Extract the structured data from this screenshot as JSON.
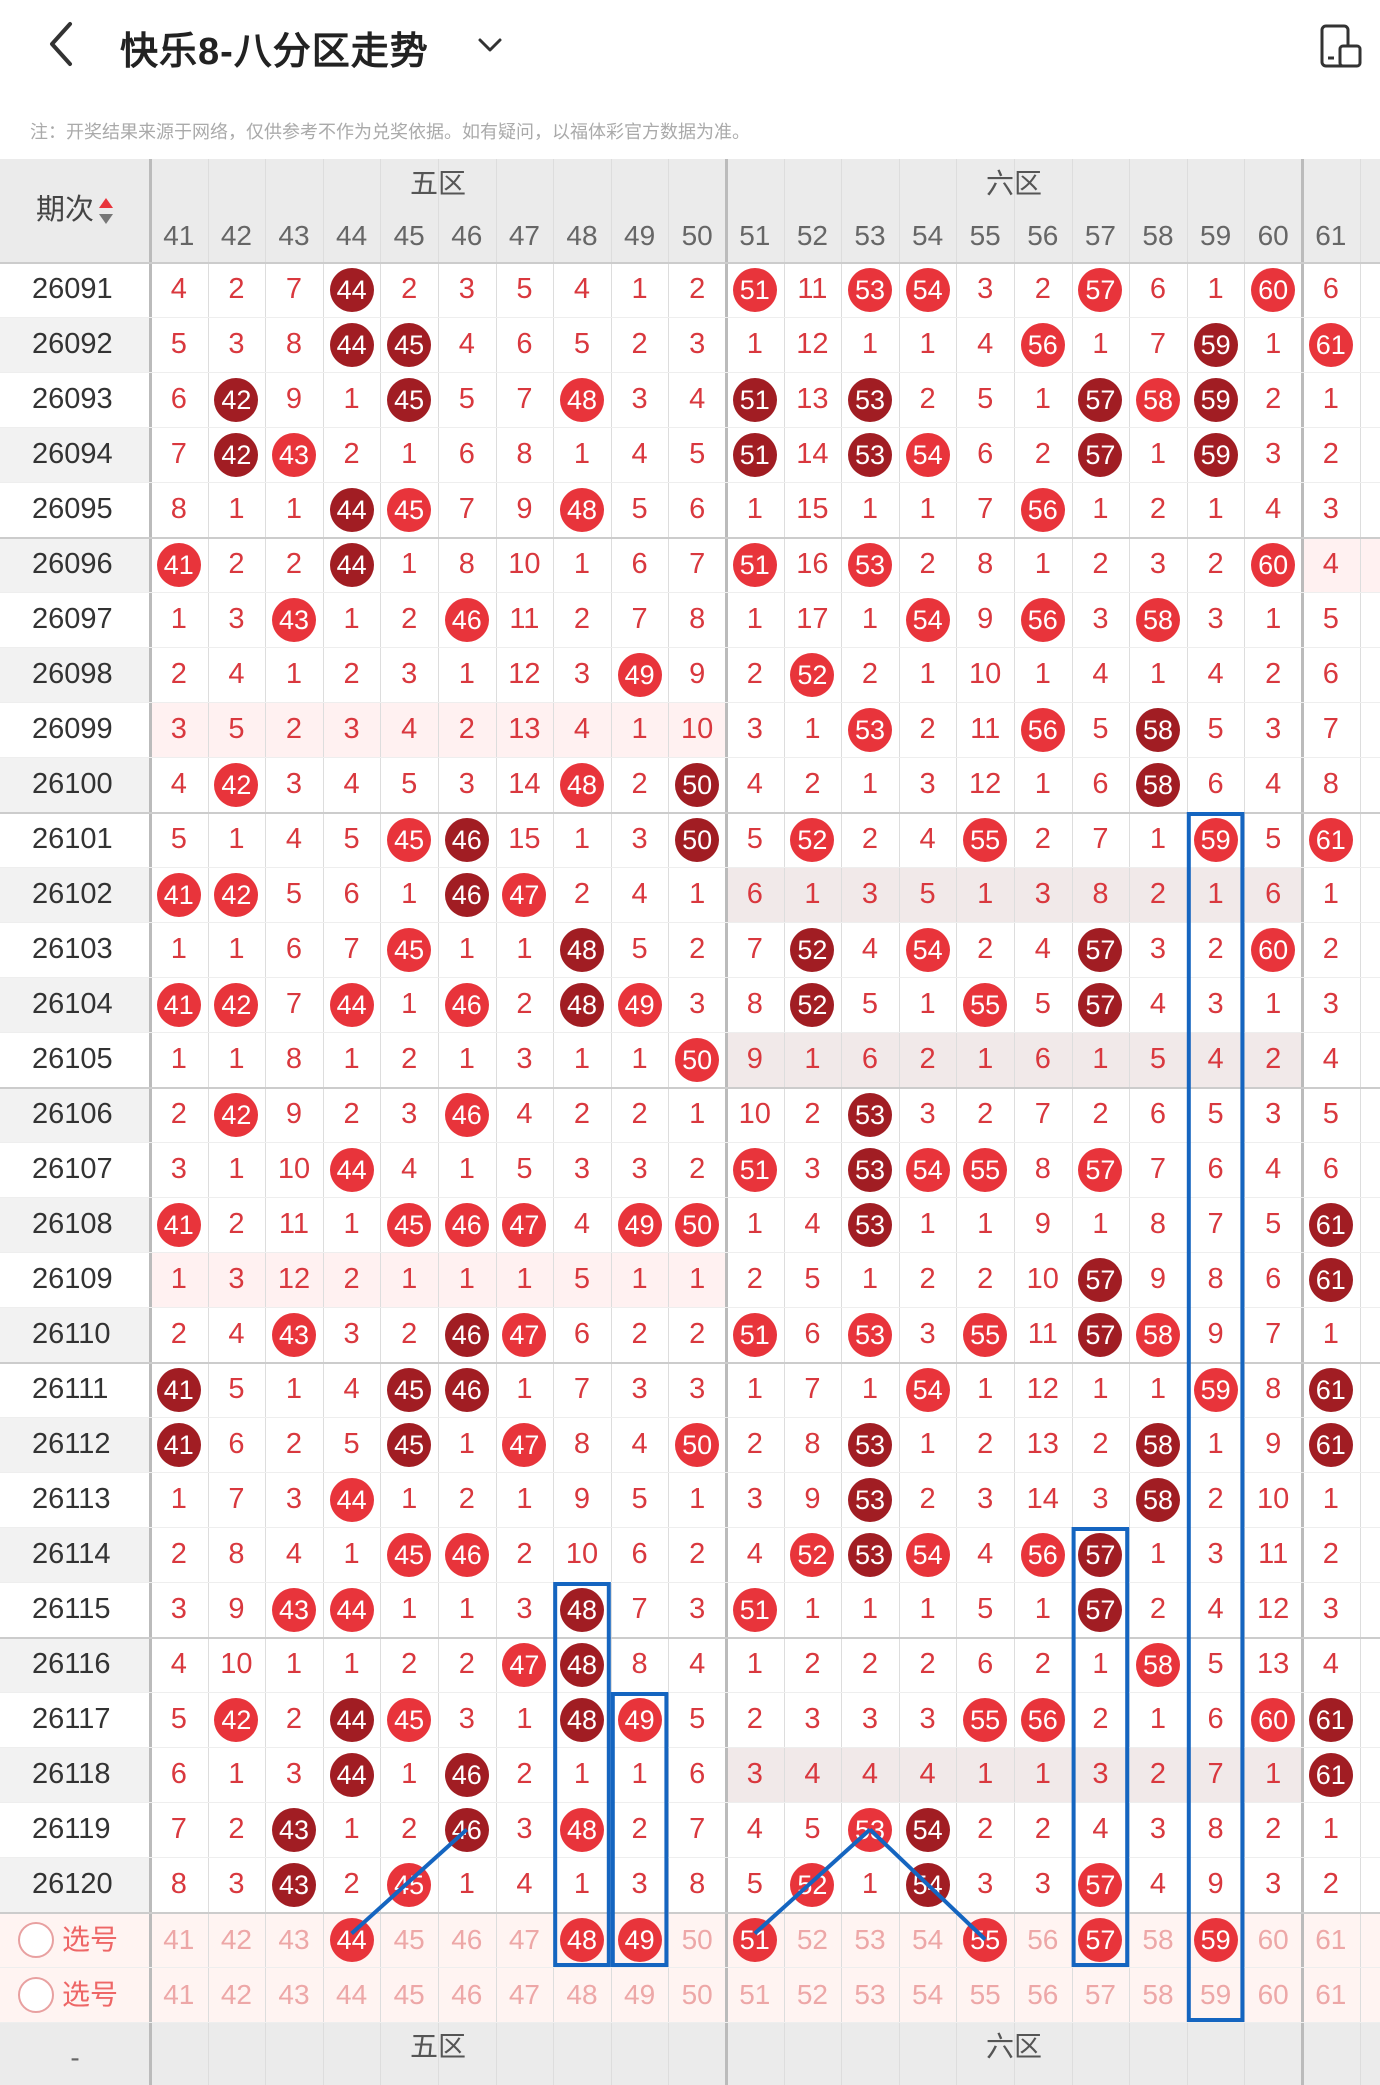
{
  "header": {
    "title": "快乐8-八分区走势",
    "back_icon": "chevron-left-icon",
    "dropdown_icon": "chevron-down-icon",
    "device_icon": "device-rotate-icon"
  },
  "notice": "注：开奖结果来源于网络，仅供参考不作为兑奖依据。如有疑问，以福体彩官方数据为准。",
  "table": {
    "period_header": "期次",
    "sort_icon": "sort-arrows-icon",
    "zones": [
      "五区",
      "六区"
    ],
    "columns": [
      "41",
      "42",
      "43",
      "44",
      "45",
      "46",
      "47",
      "48",
      "49",
      "50",
      "51",
      "52",
      "53",
      "54",
      "55",
      "56",
      "57",
      "58",
      "59",
      "60",
      "61",
      "6"
    ],
    "rows": [
      {
        "period": "26091",
        "cells": [
          "4",
          "2",
          "7",
          "44",
          "2",
          "3",
          "5",
          "4",
          "1",
          "2",
          "51",
          "11",
          "53",
          "54",
          "3",
          "2",
          "57",
          "6",
          "1",
          "60",
          "6",
          ""
        ]
      },
      {
        "period": "26092",
        "cells": [
          "5",
          "3",
          "8",
          "44",
          "45",
          "4",
          "6",
          "5",
          "2",
          "3",
          "1",
          "12",
          "1",
          "1",
          "4",
          "56",
          "1",
          "7",
          "59",
          "1",
          "61",
          ""
        ]
      },
      {
        "period": "26093",
        "cells": [
          "6",
          "42",
          "9",
          "1",
          "45",
          "5",
          "7",
          "48",
          "3",
          "4",
          "51",
          "13",
          "53",
          "2",
          "5",
          "1",
          "57",
          "58",
          "59",
          "2",
          "1",
          "6"
        ]
      },
      {
        "period": "26094",
        "cells": [
          "7",
          "42",
          "43",
          "2",
          "1",
          "6",
          "8",
          "1",
          "4",
          "5",
          "51",
          "14",
          "53",
          "54",
          "6",
          "2",
          "57",
          "1",
          "59",
          "3",
          "2",
          ""
        ]
      },
      {
        "period": "26095",
        "cells": [
          "8",
          "1",
          "1",
          "44",
          "45",
          "7",
          "9",
          "48",
          "5",
          "6",
          "1",
          "15",
          "1",
          "1",
          "7",
          "56",
          "1",
          "2",
          "1",
          "4",
          "3",
          ""
        ]
      },
      {
        "period": "26096",
        "cells": [
          "41",
          "2",
          "2",
          "44",
          "1",
          "8",
          "10",
          "1",
          "6",
          "7",
          "51",
          "16",
          "53",
          "2",
          "8",
          "1",
          "2",
          "3",
          "2",
          "60",
          "4",
          ""
        ]
      },
      {
        "period": "26097",
        "cells": [
          "1",
          "3",
          "43",
          "1",
          "2",
          "46",
          "11",
          "2",
          "7",
          "8",
          "1",
          "17",
          "1",
          "54",
          "9",
          "56",
          "3",
          "58",
          "3",
          "1",
          "5",
          "6"
        ]
      },
      {
        "period": "26098",
        "cells": [
          "2",
          "4",
          "1",
          "2",
          "3",
          "1",
          "12",
          "3",
          "49",
          "9",
          "2",
          "52",
          "2",
          "1",
          "10",
          "1",
          "4",
          "1",
          "4",
          "2",
          "6",
          ""
        ]
      },
      {
        "period": "26099",
        "cells": [
          "3",
          "5",
          "2",
          "3",
          "4",
          "2",
          "13",
          "4",
          "1",
          "10",
          "3",
          "1",
          "53",
          "2",
          "11",
          "56",
          "5",
          "58",
          "5",
          "3",
          "7",
          ""
        ]
      },
      {
        "period": "26100",
        "cells": [
          "4",
          "42",
          "3",
          "4",
          "5",
          "3",
          "14",
          "48",
          "2",
          "50",
          "4",
          "2",
          "1",
          "3",
          "12",
          "1",
          "6",
          "58",
          "6",
          "4",
          "8",
          ""
        ]
      },
      {
        "period": "26101",
        "cells": [
          "5",
          "1",
          "4",
          "5",
          "45",
          "46",
          "15",
          "1",
          "3",
          "50",
          "5",
          "52",
          "2",
          "4",
          "55",
          "2",
          "7",
          "1",
          "59",
          "5",
          "61",
          ""
        ]
      },
      {
        "period": "26102",
        "cells": [
          "41",
          "42",
          "5",
          "6",
          "1",
          "46",
          "47",
          "2",
          "4",
          "1",
          "6",
          "1",
          "3",
          "5",
          "1",
          "3",
          "8",
          "2",
          "1",
          "6",
          "1",
          ""
        ]
      },
      {
        "period": "26103",
        "cells": [
          "1",
          "1",
          "6",
          "7",
          "45",
          "1",
          "1",
          "48",
          "5",
          "2",
          "7",
          "52",
          "4",
          "54",
          "2",
          "4",
          "57",
          "3",
          "2",
          "60",
          "2",
          ""
        ]
      },
      {
        "period": "26104",
        "cells": [
          "41",
          "42",
          "7",
          "44",
          "1",
          "46",
          "2",
          "48",
          "49",
          "3",
          "8",
          "52",
          "5",
          "1",
          "55",
          "5",
          "57",
          "4",
          "3",
          "1",
          "3",
          ""
        ]
      },
      {
        "period": "26105",
        "cells": [
          "1",
          "1",
          "8",
          "1",
          "2",
          "1",
          "3",
          "1",
          "1",
          "50",
          "9",
          "1",
          "6",
          "2",
          "1",
          "6",
          "1",
          "5",
          "4",
          "2",
          "4",
          ""
        ]
      },
      {
        "period": "26106",
        "cells": [
          "2",
          "42",
          "9",
          "2",
          "3",
          "46",
          "4",
          "2",
          "2",
          "1",
          "10",
          "2",
          "53",
          "3",
          "2",
          "7",
          "2",
          "6",
          "5",
          "3",
          "5",
          "6"
        ]
      },
      {
        "period": "26107",
        "cells": [
          "3",
          "1",
          "10",
          "44",
          "4",
          "1",
          "5",
          "3",
          "3",
          "2",
          "51",
          "3",
          "53",
          "54",
          "55",
          "8",
          "57",
          "7",
          "6",
          "4",
          "6",
          ""
        ]
      },
      {
        "period": "26108",
        "cells": [
          "41",
          "2",
          "11",
          "1",
          "45",
          "46",
          "47",
          "4",
          "49",
          "50",
          "1",
          "4",
          "53",
          "1",
          "1",
          "9",
          "1",
          "8",
          "7",
          "5",
          "61",
          ""
        ]
      },
      {
        "period": "26109",
        "cells": [
          "1",
          "3",
          "12",
          "2",
          "1",
          "1",
          "1",
          "5",
          "1",
          "1",
          "2",
          "5",
          "1",
          "2",
          "2",
          "10",
          "57",
          "9",
          "8",
          "6",
          "61",
          ""
        ]
      },
      {
        "period": "26110",
        "cells": [
          "2",
          "4",
          "43",
          "3",
          "2",
          "46",
          "47",
          "6",
          "2",
          "2",
          "51",
          "6",
          "53",
          "3",
          "55",
          "11",
          "57",
          "58",
          "9",
          "7",
          "1",
          ""
        ]
      },
      {
        "period": "26111",
        "cells": [
          "41",
          "5",
          "1",
          "4",
          "45",
          "46",
          "1",
          "7",
          "3",
          "3",
          "1",
          "7",
          "1",
          "54",
          "1",
          "12",
          "1",
          "1",
          "59",
          "8",
          "61",
          ""
        ]
      },
      {
        "period": "26112",
        "cells": [
          "41",
          "6",
          "2",
          "5",
          "45",
          "1",
          "47",
          "8",
          "4",
          "50",
          "2",
          "8",
          "53",
          "1",
          "2",
          "13",
          "2",
          "58",
          "1",
          "9",
          "61",
          "6"
        ]
      },
      {
        "period": "26113",
        "cells": [
          "1",
          "7",
          "3",
          "44",
          "1",
          "2",
          "1",
          "9",
          "5",
          "1",
          "3",
          "9",
          "53",
          "2",
          "3",
          "14",
          "3",
          "58",
          "2",
          "10",
          "1",
          "6"
        ]
      },
      {
        "period": "26114",
        "cells": [
          "2",
          "8",
          "4",
          "1",
          "45",
          "46",
          "2",
          "10",
          "6",
          "2",
          "4",
          "52",
          "53",
          "54",
          "4",
          "56",
          "57",
          "1",
          "3",
          "11",
          "2",
          ""
        ]
      },
      {
        "period": "26115",
        "cells": [
          "3",
          "9",
          "43",
          "44",
          "1",
          "1",
          "3",
          "48",
          "7",
          "3",
          "51",
          "1",
          "1",
          "1",
          "5",
          "1",
          "57",
          "2",
          "4",
          "12",
          "3",
          ""
        ]
      },
      {
        "period": "26116",
        "cells": [
          "4",
          "10",
          "1",
          "1",
          "2",
          "2",
          "47",
          "48",
          "8",
          "4",
          "1",
          "2",
          "2",
          "2",
          "6",
          "2",
          "1",
          "58",
          "5",
          "13",
          "4",
          "6"
        ]
      },
      {
        "period": "26117",
        "cells": [
          "5",
          "42",
          "2",
          "44",
          "45",
          "3",
          "1",
          "48",
          "49",
          "5",
          "2",
          "3",
          "3",
          "3",
          "55",
          "56",
          "2",
          "1",
          "6",
          "60",
          "61",
          ""
        ]
      },
      {
        "period": "26118",
        "cells": [
          "6",
          "1",
          "3",
          "44",
          "1",
          "46",
          "2",
          "1",
          "1",
          "6",
          "3",
          "4",
          "4",
          "4",
          "1",
          "1",
          "3",
          "2",
          "7",
          "1",
          "61",
          ""
        ]
      },
      {
        "period": "26119",
        "cells": [
          "7",
          "2",
          "43",
          "1",
          "2",
          "46",
          "3",
          "48",
          "2",
          "7",
          "4",
          "5",
          "53",
          "54",
          "2",
          "2",
          "4",
          "3",
          "8",
          "2",
          "1",
          ""
        ]
      },
      {
        "period": "26120",
        "cells": [
          "8",
          "3",
          "43",
          "2",
          "45",
          "1",
          "4",
          "1",
          "3",
          "8",
          "5",
          "52",
          "1",
          "54",
          "3",
          "3",
          "57",
          "4",
          "9",
          "3",
          "2",
          ""
        ]
      }
    ],
    "select_rows": [
      {
        "label": "选号",
        "cells": [
          "41",
          "42",
          "43",
          "44",
          "45",
          "46",
          "47",
          "48",
          "49",
          "50",
          "51",
          "52",
          "53",
          "54",
          "55",
          "56",
          "57",
          "58",
          "59",
          "60",
          "61",
          "6"
        ]
      },
      {
        "label": "选号",
        "cells": [
          "41",
          "42",
          "43",
          "44",
          "45",
          "46",
          "47",
          "48",
          "49",
          "50",
          "51",
          "52",
          "53",
          "54",
          "55",
          "56",
          "57",
          "58",
          "59",
          "60",
          "61",
          "6"
        ]
      }
    ],
    "footer_zones": [
      "五区",
      "六区"
    ],
    "footer_dash": "-"
  },
  "colors": {
    "ball_red": "#e8343b",
    "ball_dark": "#a11d23",
    "number_red": "#d9383e",
    "highlight_blue": "#1565c0"
  }
}
